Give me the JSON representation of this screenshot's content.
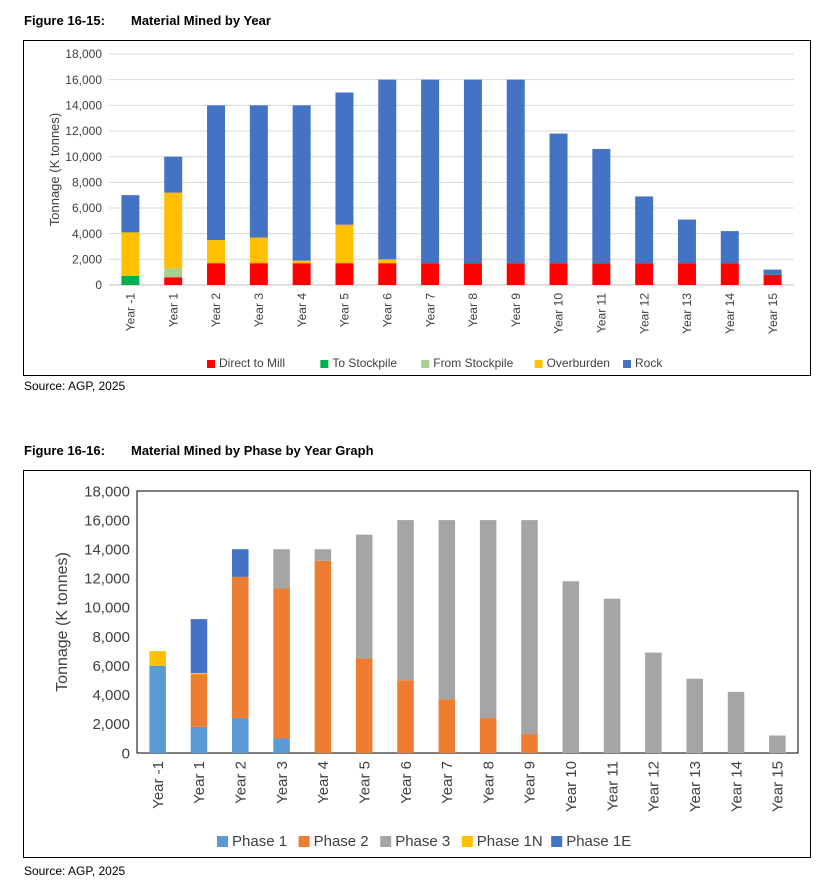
{
  "figures": [
    {
      "caption_number": "Figure 16-15:",
      "caption_title": "Material Mined by Year",
      "source": "Source: AGP, 2025"
    },
    {
      "caption_number": "Figure 16-16:",
      "caption_title": "Material Mined by Phase by Year Graph",
      "source": "Source: AGP, 2025"
    }
  ],
  "chart_data": [
    {
      "type": "bar",
      "stacked": true,
      "title": "",
      "xlabel": "",
      "ylabel": "Tonnage (K tonnes)",
      "ylim": [
        0,
        18000
      ],
      "ytick_step": 2000,
      "yticks": [
        "0",
        "2,000",
        "4,000",
        "6,000",
        "8,000",
        "10,000",
        "12,000",
        "14,000",
        "16,000",
        "18,000"
      ],
      "grid": true,
      "legend": "bottom",
      "categories": [
        "Year -1",
        "Year 1",
        "Year 2",
        "Year 3",
        "Year 4",
        "Year 5",
        "Year 6",
        "Year 7",
        "Year 8",
        "Year 9",
        "Year 10",
        "Year 11",
        "Year 12",
        "Year 13",
        "Year 14",
        "Year 15"
      ],
      "series": [
        {
          "name": "Direct to Mill",
          "color": "#ff0000",
          "values": [
            0,
            600,
            1700,
            1700,
            1700,
            1700,
            1700,
            1700,
            1700,
            1700,
            1700,
            1700,
            1700,
            1700,
            1700,
            800
          ]
        },
        {
          "name": "To Stockpile",
          "color": "#00b050",
          "values": [
            700,
            0,
            0,
            0,
            0,
            0,
            0,
            0,
            0,
            0,
            0,
            0,
            0,
            0,
            0,
            0
          ]
        },
        {
          "name": "From Stockpile",
          "color": "#a9d08e",
          "values": [
            0,
            700,
            0,
            0,
            0,
            0,
            0,
            0,
            0,
            0,
            0,
            0,
            0,
            0,
            0,
            0
          ]
        },
        {
          "name": "Overburden",
          "color": "#ffc000",
          "values": [
            3400,
            5900,
            1800,
            2000,
            200,
            3000,
            300,
            0,
            0,
            0,
            0,
            0,
            0,
            0,
            0,
            0
          ]
        },
        {
          "name": "Rock",
          "color": "#4472c4",
          "values": [
            2900,
            2800,
            10500,
            10300,
            12100,
            10300,
            14000,
            14300,
            14300,
            14300,
            10100,
            8900,
            5200,
            3400,
            2500,
            400
          ]
        }
      ]
    },
    {
      "type": "bar",
      "stacked": true,
      "title": "",
      "xlabel": "",
      "ylabel": "Tonnage (K tonnes)",
      "ylim": [
        0,
        18000
      ],
      "ytick_step": 2000,
      "yticks": [
        "0",
        "2,000",
        "4,000",
        "6,000",
        "8,000",
        "10,000",
        "12,000",
        "14,000",
        "16,000",
        "18,000"
      ],
      "grid": false,
      "legend": "bottom",
      "categories": [
        "Year -1",
        "Year 1",
        "Year 2",
        "Year 3",
        "Year 4",
        "Year 5",
        "Year 6",
        "Year 7",
        "Year 8",
        "Year 9",
        "Year 10",
        "Year 11",
        "Year 12",
        "Year 13",
        "Year 14",
        "Year 15"
      ],
      "series": [
        {
          "name": "Phase 1",
          "color": "#5b9bd5",
          "values": [
            6000,
            1800,
            2400,
            1000,
            0,
            0,
            0,
            0,
            0,
            0,
            0,
            0,
            0,
            0,
            0,
            0
          ]
        },
        {
          "name": "Phase 2",
          "color": "#ed7d31",
          "values": [
            0,
            3600,
            9700,
            10300,
            13200,
            6500,
            5000,
            3700,
            2400,
            1300,
            0,
            0,
            0,
            0,
            0,
            0
          ]
        },
        {
          "name": "Phase 3",
          "color": "#a5a5a5",
          "values": [
            0,
            0,
            0,
            2700,
            800,
            8500,
            11000,
            12300,
            13600,
            14700,
            11800,
            10600,
            6900,
            5100,
            4200,
            1200
          ]
        },
        {
          "name": "Phase 1N",
          "color": "#ffc000",
          "values": [
            1000,
            100,
            0,
            0,
            0,
            0,
            0,
            0,
            0,
            0,
            0,
            0,
            0,
            0,
            0,
            0
          ]
        },
        {
          "name": "Phase 1E",
          "color": "#4472c4",
          "values": [
            0,
            3700,
            1900,
            0,
            0,
            0,
            0,
            0,
            0,
            0,
            0,
            0,
            0,
            0,
            0,
            0
          ]
        }
      ]
    }
  ]
}
